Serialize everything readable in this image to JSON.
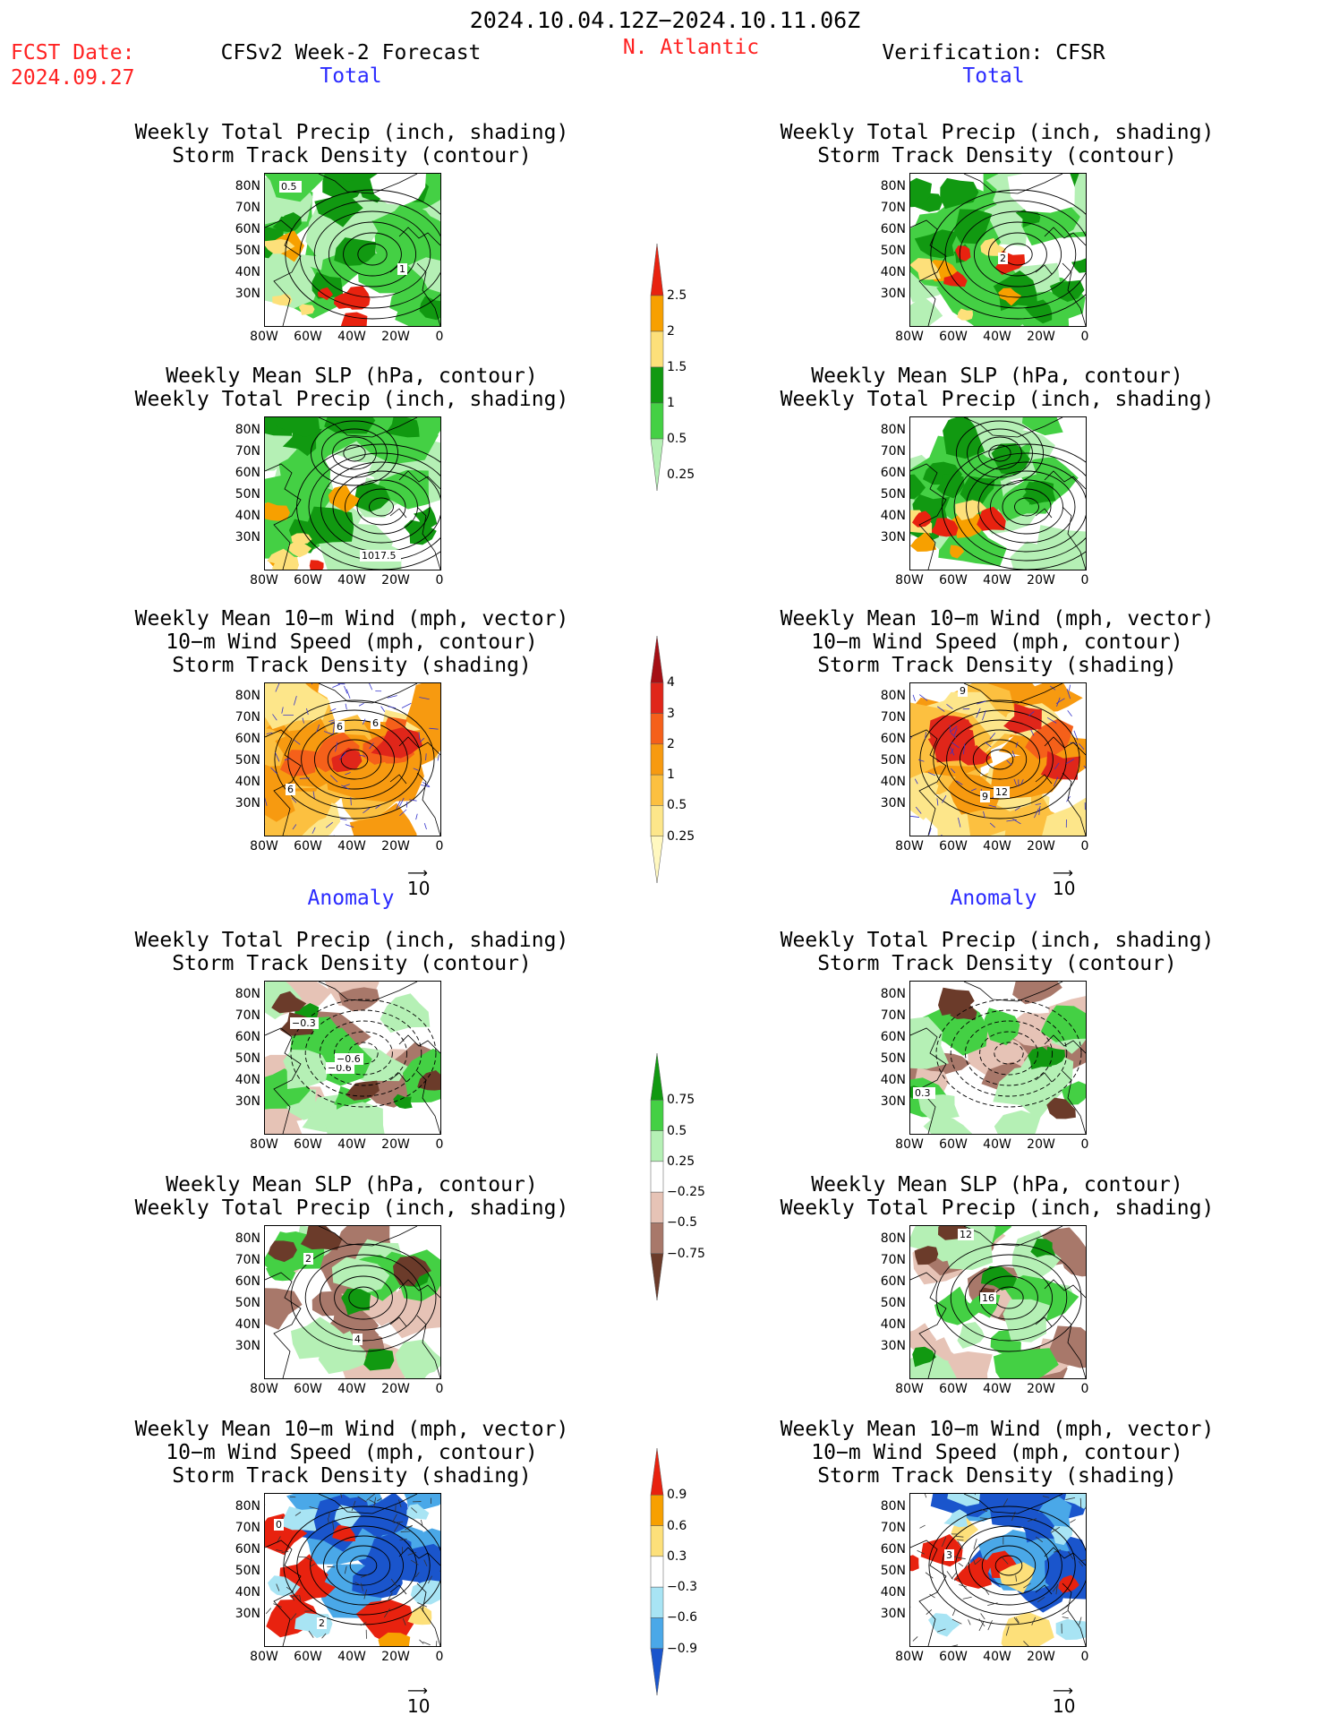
{
  "header": {
    "period": "2024.10.04.12Z−2024.10.11.06Z",
    "fcst_label": "FCST Date:",
    "fcst_date": "2024.09.27",
    "model": "CFSv2 Week-2 Forecast",
    "region": "N. Atlantic",
    "verification": "Verification: CFSR"
  },
  "sections": {
    "total": "Total",
    "anomaly": "Anomaly"
  },
  "titles": {
    "precip_storm": [
      "Weekly Total Precip (inch, shading)",
      "Storm Track Density (contour)"
    ],
    "slp_precip": [
      "Weekly Mean SLP (hPa, contour)",
      "Weekly Total Precip (inch, shading)"
    ],
    "wind_storm": [
      "Weekly Mean 10−m Wind (mph, vector)",
      "10−m Wind Speed (mph, contour)",
      "Storm Track Density (shading)"
    ]
  },
  "axes": {
    "lat_ticks": [
      "80N",
      "70N",
      "60N",
      "50N",
      "40N",
      "30N"
    ],
    "lon_ticks": [
      "80W",
      "60W",
      "40W",
      "20W",
      "0"
    ]
  },
  "vector_ref": "10",
  "colorbars": {
    "precip_total": {
      "labels": [
        "2.5",
        "2",
        "1.5",
        "1",
        "0.5",
        "0.25"
      ],
      "colors": [
        "#e8220f",
        "#f7a000",
        "#fde07a",
        "#119911",
        "#44d044",
        "#b5f0b5"
      ]
    },
    "storm_total": {
      "labels": [
        "4",
        "3",
        "2",
        "1",
        "0.5",
        "0.25"
      ],
      "colors": [
        "#a50f15",
        "#e0261a",
        "#f5601a",
        "#f79a10",
        "#fcc040",
        "#fde68a",
        "#fff8c0"
      ]
    },
    "precip_anom": {
      "labels": [
        "0.75",
        "0.5",
        "0.25",
        "−0.25",
        "−0.5",
        "−0.75"
      ],
      "colors": [
        "#119911",
        "#44d044",
        "#b5f0b5",
        "#ffffff",
        "#e6c3b6",
        "#a8786a",
        "#6b3b2a"
      ]
    },
    "storm_anom": {
      "labels": [
        "0.9",
        "0.6",
        "0.3",
        "−0.3",
        "−0.6",
        "−0.9"
      ],
      "colors": [
        "#e8220f",
        "#f7a000",
        "#fde07a",
        "#ffffff",
        "#a8e4f4",
        "#4aa8e8",
        "#1a55cc"
      ]
    }
  },
  "map_labels": {
    "f1": "0.5",
    "f1b": "1",
    "v1": "2",
    "f2": "1017.5",
    "f3": "6",
    "f3b": "6",
    "f3c": "6",
    "v3": "9",
    "v3b": "12",
    "v3c": "9",
    "f4": "−0.3",
    "f4b": "−0.6",
    "f4c": "−0.6",
    "v4": "0.3",
    "f5": "4",
    "f5b": "2",
    "v5": "12",
    "v5b": "16",
    "f6": "2",
    "f6b": "0",
    "v6": "3"
  }
}
